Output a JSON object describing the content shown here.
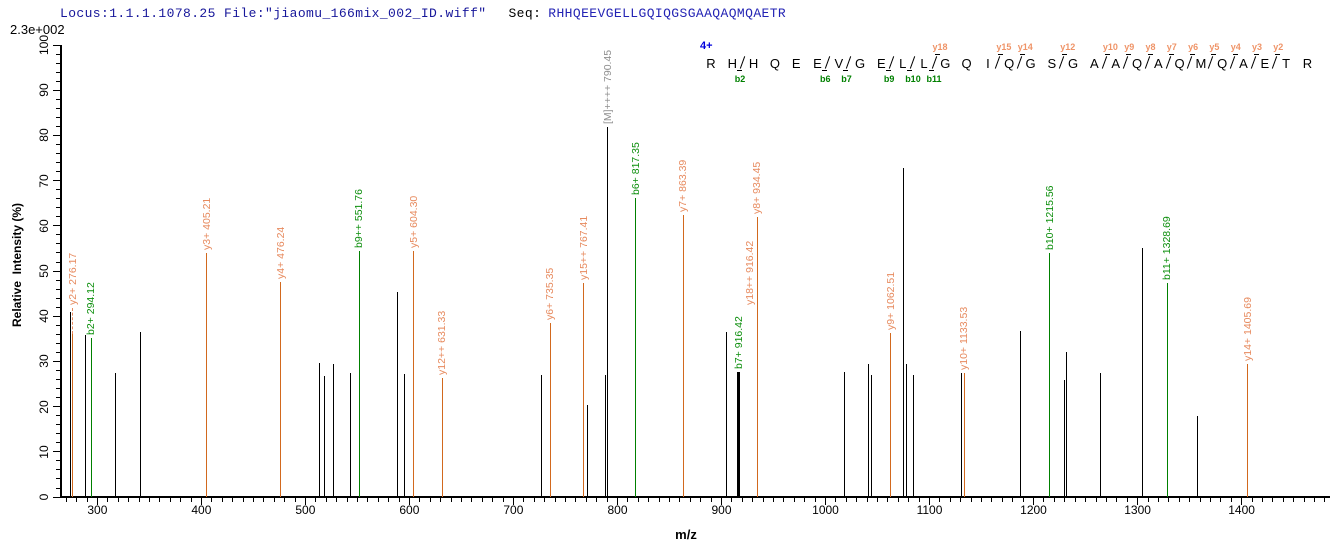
{
  "header": {
    "locus_file": "Locus:1.1.1.1078.25 File:\"jiaomu_166mix_002_ID.wiff\"",
    "seq_label": "Seq:",
    "seq_value": "RHHQEEVGELLGQIQGSGAAQAQMQAETR",
    "max_intensity": "2.3e+002"
  },
  "colors": {
    "y_ion_line": "#d2691e",
    "y_ion_label": "#e78a5e",
    "b_ion_line": "#008000",
    "b_ion_label": "#0d8f0d",
    "precursor_line": "#000000",
    "precursor_label": "#8f8f8f",
    "unlabeled_peak": "#000000",
    "header_navy": "#16169a",
    "charge_blue": "#0000dd",
    "seq_y_marker": "#ef9468",
    "seq_b_marker": "#008000"
  },
  "annotation": {
    "charge": "4+",
    "residues": [
      "R",
      "H",
      "H",
      "Q",
      "E",
      "E",
      "V",
      "G",
      "E",
      "L",
      "L",
      "G",
      "Q",
      "I",
      "Q",
      "G",
      "S",
      "G",
      "A",
      "A",
      "Q",
      "A",
      "Q",
      "M",
      "Q",
      "A",
      "E",
      "T",
      "R"
    ],
    "cuts": [
      {
        "after": 2,
        "b": "b2"
      },
      {
        "after": 6,
        "b": "b6"
      },
      {
        "after": 7,
        "b": "b7"
      },
      {
        "after": 9,
        "b": "b9"
      },
      {
        "after": 10,
        "b": "b10"
      },
      {
        "after": 11,
        "b": "b11",
        "y": "y18"
      },
      {
        "after": 14,
        "y": "y15"
      },
      {
        "after": 15,
        "y": "y14"
      },
      {
        "after": 17,
        "y": "y12"
      },
      {
        "after": 19,
        "y": "y10"
      },
      {
        "after": 20,
        "y": "y9"
      },
      {
        "after": 21,
        "y": "y8"
      },
      {
        "after": 22,
        "y": "y7"
      },
      {
        "after": 23,
        "y": "y6"
      },
      {
        "after": 24,
        "y": "y5"
      },
      {
        "after": 25,
        "y": "y4"
      },
      {
        "after": 26,
        "y": "y3"
      },
      {
        "after": 27,
        "y": "y2"
      }
    ]
  },
  "chart_data": {
    "type": "bar",
    "subtype": "ms2-stick-spectrum",
    "title": "",
    "xlabel": "m/z",
    "ylabel": "Relative  Intensity (%)",
    "x_range": [
      266,
      1485
    ],
    "ylim": [
      0,
      100
    ],
    "x_tick_min": 300,
    "x_tick_max": 1400,
    "x_tick_step": 100,
    "x_minor_step": 10,
    "y_tick_step": 10,
    "y_minor_step": 2,
    "grid": false,
    "labeled_peaks": [
      {
        "mz": 276.17,
        "pct": 36.0,
        "series": "y",
        "labels": [
          {
            "text": "y2+ 276.17",
            "c": "y",
            "dy": 26,
            "dash": true
          }
        ]
      },
      {
        "mz": 294.12,
        "pct": 35.2,
        "series": "b",
        "labels": [
          {
            "text": "b2+ 294.12",
            "c": "b"
          }
        ]
      },
      {
        "mz": 405.21,
        "pct": 54.0,
        "series": "y",
        "labels": [
          {
            "text": "y3+ 405.21",
            "c": "y"
          }
        ]
      },
      {
        "mz": 476.24,
        "pct": 47.6,
        "series": "y",
        "labels": [
          {
            "text": "y4+ 476.24",
            "c": "y"
          }
        ]
      },
      {
        "mz": 551.76,
        "pct": 54.4,
        "series": "b",
        "labels": [
          {
            "text": "b9++ 551.76",
            "c": "b"
          }
        ]
      },
      {
        "mz": 604.3,
        "pct": 54.4,
        "series": "y",
        "labels": [
          {
            "text": "y5+ 604.30",
            "c": "y"
          }
        ]
      },
      {
        "mz": 631.33,
        "pct": 26.3,
        "series": "y",
        "labels": [
          {
            "text": "y12++ 631.33",
            "c": "y"
          }
        ]
      },
      {
        "mz": 735.35,
        "pct": 38.6,
        "series": "y",
        "labels": [
          {
            "text": "y6+ 735.35",
            "c": "y"
          }
        ]
      },
      {
        "mz": 767.41,
        "pct": 47.3,
        "series": "y",
        "labels": [
          {
            "text": "y15++ 767.41",
            "c": "y"
          }
        ]
      },
      {
        "mz": 790.45,
        "pct": 81.9,
        "series": "precursor",
        "labels": [
          {
            "text": "[M]++++ 790.45",
            "c": "m"
          }
        ]
      },
      {
        "mz": 817.35,
        "pct": 66.1,
        "series": "b",
        "labels": [
          {
            "text": "b6+ 817.35",
            "c": "b"
          }
        ]
      },
      {
        "mz": 863.39,
        "pct": 62.4,
        "series": "y",
        "labels": [
          {
            "text": "y7+ 863.39",
            "c": "y"
          }
        ]
      },
      {
        "mz": 916.42,
        "pct": 27.7,
        "series": "precursor",
        "w": 3,
        "labels": [
          {
            "text": "b7+ 916.42",
            "c": "b"
          },
          {
            "text": "y18++ 916.42",
            "c": "y",
            "dx": 11,
            "dy": 64
          }
        ]
      },
      {
        "mz": 934.45,
        "pct": 62.0,
        "series": "y",
        "labels": [
          {
            "text": "y8+ 934.45",
            "c": "y"
          }
        ]
      },
      {
        "mz": 1062.51,
        "pct": 36.4,
        "series": "y",
        "labels": [
          {
            "text": "y9+ 1062.51",
            "c": "y"
          }
        ]
      },
      {
        "mz": 1133.53,
        "pct": 27.4,
        "series": "y",
        "labels": [
          {
            "text": "y10+ 1133.53",
            "c": "y"
          }
        ]
      },
      {
        "mz": 1215.56,
        "pct": 53.9,
        "series": "b",
        "labels": [
          {
            "text": "b10+ 1215.56",
            "c": "b"
          }
        ]
      },
      {
        "mz": 1328.69,
        "pct": 47.4,
        "series": "b",
        "labels": [
          {
            "text": "b11+ 1328.69",
            "c": "b"
          }
        ]
      },
      {
        "mz": 1405.69,
        "pct": 29.4,
        "series": "y",
        "labels": [
          {
            "text": "y14+ 1405.69",
            "c": "y"
          }
        ]
      }
    ],
    "unlabeled_peaks": [
      [
        274.0,
        40.9
      ],
      [
        288.5,
        35.8
      ],
      [
        317.5,
        27.4
      ],
      [
        341.5,
        36.5
      ],
      [
        513.5,
        29.6
      ],
      [
        518.5,
        26.8
      ],
      [
        526.5,
        29.4
      ],
      [
        543.5,
        27.4
      ],
      [
        588.5,
        45.4
      ],
      [
        595.0,
        27.2
      ],
      [
        727.0,
        27.0
      ],
      [
        771.5,
        20.4
      ],
      [
        788.0,
        27.0
      ],
      [
        905.0,
        36.6
      ],
      [
        1018.0,
        27.7
      ],
      [
        1041.0,
        29.4
      ],
      [
        1044.0,
        27.0
      ],
      [
        1075.0,
        72.7
      ],
      [
        1078.0,
        29.4
      ],
      [
        1085.0,
        27.0
      ],
      [
        1130.5,
        27.4
      ],
      [
        1187.0,
        36.8
      ],
      [
        1230.0,
        25.9
      ],
      [
        1231.5,
        32.1
      ],
      [
        1264.0,
        27.4
      ],
      [
        1305.0,
        55.0
      ],
      [
        1358.0,
        17.9
      ]
    ]
  }
}
